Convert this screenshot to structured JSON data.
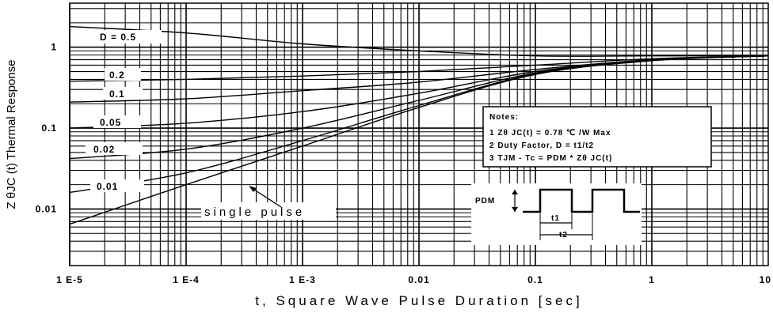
{
  "chart_data": {
    "type": "line",
    "title": "",
    "xlabel": "t, Square Wave Pulse Duration [sec]",
    "ylabel": "Z θJC (t) Thermal Response",
    "x_scale": "log",
    "y_scale": "log",
    "xlim": [
      1e-05,
      10
    ],
    "ylim": [
      0.002,
      3.5
    ],
    "grid": true,
    "x_ticks": [
      {
        "value": 1e-05,
        "label": "1 E-5"
      },
      {
        "value": 0.0001,
        "label": "1 E-4"
      },
      {
        "value": 0.001,
        "label": "1 E-3"
      },
      {
        "value": 0.01,
        "label": "0.01"
      },
      {
        "value": 0.1,
        "label": "0.1"
      },
      {
        "value": 1,
        "label": "1"
      },
      {
        "value": 10,
        "label": "10"
      }
    ],
    "y_ticks": [
      {
        "value": 0.01,
        "label": "0.01"
      },
      {
        "value": 0.1,
        "label": "0.1"
      },
      {
        "value": 1,
        "label": "1"
      }
    ],
    "series": [
      {
        "name": "D = 0.5",
        "x": [
          1e-05,
          0.0001,
          0.001,
          0.01,
          0.1,
          1,
          10
        ],
        "y": [
          1.8,
          1.5,
          1.1,
          0.9,
          0.78,
          0.78,
          0.78
        ]
      },
      {
        "name": "0.2",
        "x": [
          1e-05,
          0.0001,
          0.001,
          0.01,
          0.1,
          1,
          10
        ],
        "y": [
          0.38,
          0.4,
          0.44,
          0.5,
          0.6,
          0.72,
          0.78
        ]
      },
      {
        "name": "0.1",
        "x": [
          1e-05,
          0.0001,
          0.001,
          0.01,
          0.1,
          1,
          10
        ],
        "y": [
          0.21,
          0.23,
          0.29,
          0.37,
          0.53,
          0.7,
          0.78
        ]
      },
      {
        "name": "0.05",
        "x": [
          1e-05,
          0.0001,
          0.001,
          0.01,
          0.1,
          1,
          10
        ],
        "y": [
          0.1,
          0.115,
          0.16,
          0.27,
          0.5,
          0.7,
          0.78
        ]
      },
      {
        "name": "0.02",
        "x": [
          1e-05,
          0.0001,
          0.001,
          0.01,
          0.1,
          1,
          10
        ],
        "y": [
          0.042,
          0.055,
          0.1,
          0.22,
          0.48,
          0.69,
          0.78
        ]
      },
      {
        "name": "0.01",
        "x": [
          1e-05,
          0.0001,
          0.001,
          0.01,
          0.1,
          1,
          10
        ],
        "y": [
          0.016,
          0.028,
          0.07,
          0.19,
          0.47,
          0.69,
          0.78
        ]
      },
      {
        "name": "single pulse",
        "x": [
          1e-05,
          0.0001,
          0.001,
          0.01,
          0.1,
          1,
          10
        ],
        "y": [
          0.0065,
          0.02,
          0.06,
          0.18,
          0.46,
          0.68,
          0.78
        ]
      }
    ],
    "labels": {
      "d05": "D = 0.5",
      "d02": "0.2",
      "d01": "0.1",
      "d005": "0.05",
      "d002": "0.02",
      "d001": "0.01",
      "single": "single pulse"
    },
    "notes": {
      "heading": "Notes:",
      "line1": "1 Zθ JC(t) = 0.78 ℃ /W Max",
      "line2": "2 Duty Factor, D = t1/t2",
      "line3": "3 TJM - Tc = PDM * Zθ JC(t)"
    },
    "waveform_labels": {
      "pdm": "PDM",
      "t1": "t1",
      "t2": "t2"
    }
  }
}
